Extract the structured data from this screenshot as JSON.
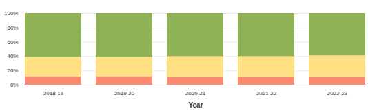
{
  "chart_data": {
    "type": "bar",
    "stacked": true,
    "grid": true,
    "x_label": "Year",
    "categories": [
      "2018-19",
      "2019-20",
      "2020-21",
      "2021-22",
      "2022-23"
    ],
    "series": [
      {
        "color": "#f88b72",
        "values": [
          12,
          12,
          11,
          11,
          11
        ]
      },
      {
        "color": "#ffe082",
        "values": [
          27,
          27,
          29,
          29,
          30
        ]
      },
      {
        "color": "#8fb258",
        "values": [
          61,
          61,
          60,
          60,
          59
        ]
      }
    ],
    "ylim": [
      0,
      100
    ],
    "yticks": [
      {
        "value": 0,
        "label": "0%"
      },
      {
        "value": 20,
        "label": "20%"
      },
      {
        "value": 40,
        "label": "40%"
      },
      {
        "value": 60,
        "label": "60%"
      },
      {
        "value": 80,
        "label": "80%"
      },
      {
        "value": 100,
        "label": "100%"
      }
    ]
  }
}
